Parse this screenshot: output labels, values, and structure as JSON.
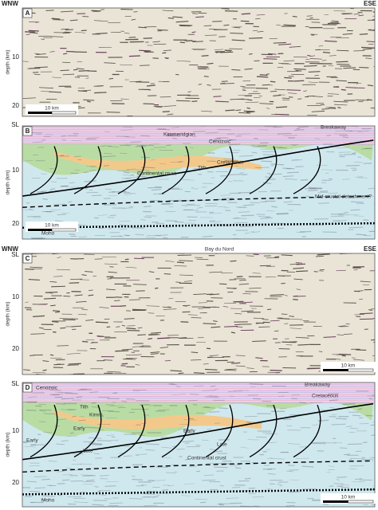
{
  "panels": [
    {
      "label": "A",
      "left": "WNW",
      "right": "ESE",
      "ticks": [
        "10",
        "20"
      ],
      "ylabel": "depth (km)",
      "scale": "10 km"
    },
    {
      "label": "B",
      "ticks": [
        "SL",
        "10",
        "20"
      ],
      "ylabel": "depth (km)",
      "scale": "10 km",
      "annotations": [
        "Kimmeridgian",
        "Cenozoic",
        "Breakaway",
        "Cretaceous",
        "Tith.",
        "Continental crust",
        "Mid-crustal detachment?",
        "Moho"
      ]
    },
    {
      "label": "C",
      "left": "WNW",
      "center": "Bay du Nord",
      "right": "ESE",
      "ticks": [
        "SL",
        "10",
        "20"
      ],
      "ylabel": "depth (km)",
      "scale": "10 km"
    },
    {
      "label": "D",
      "ticks": [
        "SL",
        "10",
        "20"
      ],
      "ylabel": "depth (km)",
      "scale": "10 km",
      "annotations": [
        "Cenozoic",
        "Breakaway",
        "Cretaceous",
        "Tith",
        "Kimm.",
        "Early",
        "Early",
        "Early",
        "Late",
        "Late",
        "Continental crust",
        "Moho"
      ]
    }
  ]
}
